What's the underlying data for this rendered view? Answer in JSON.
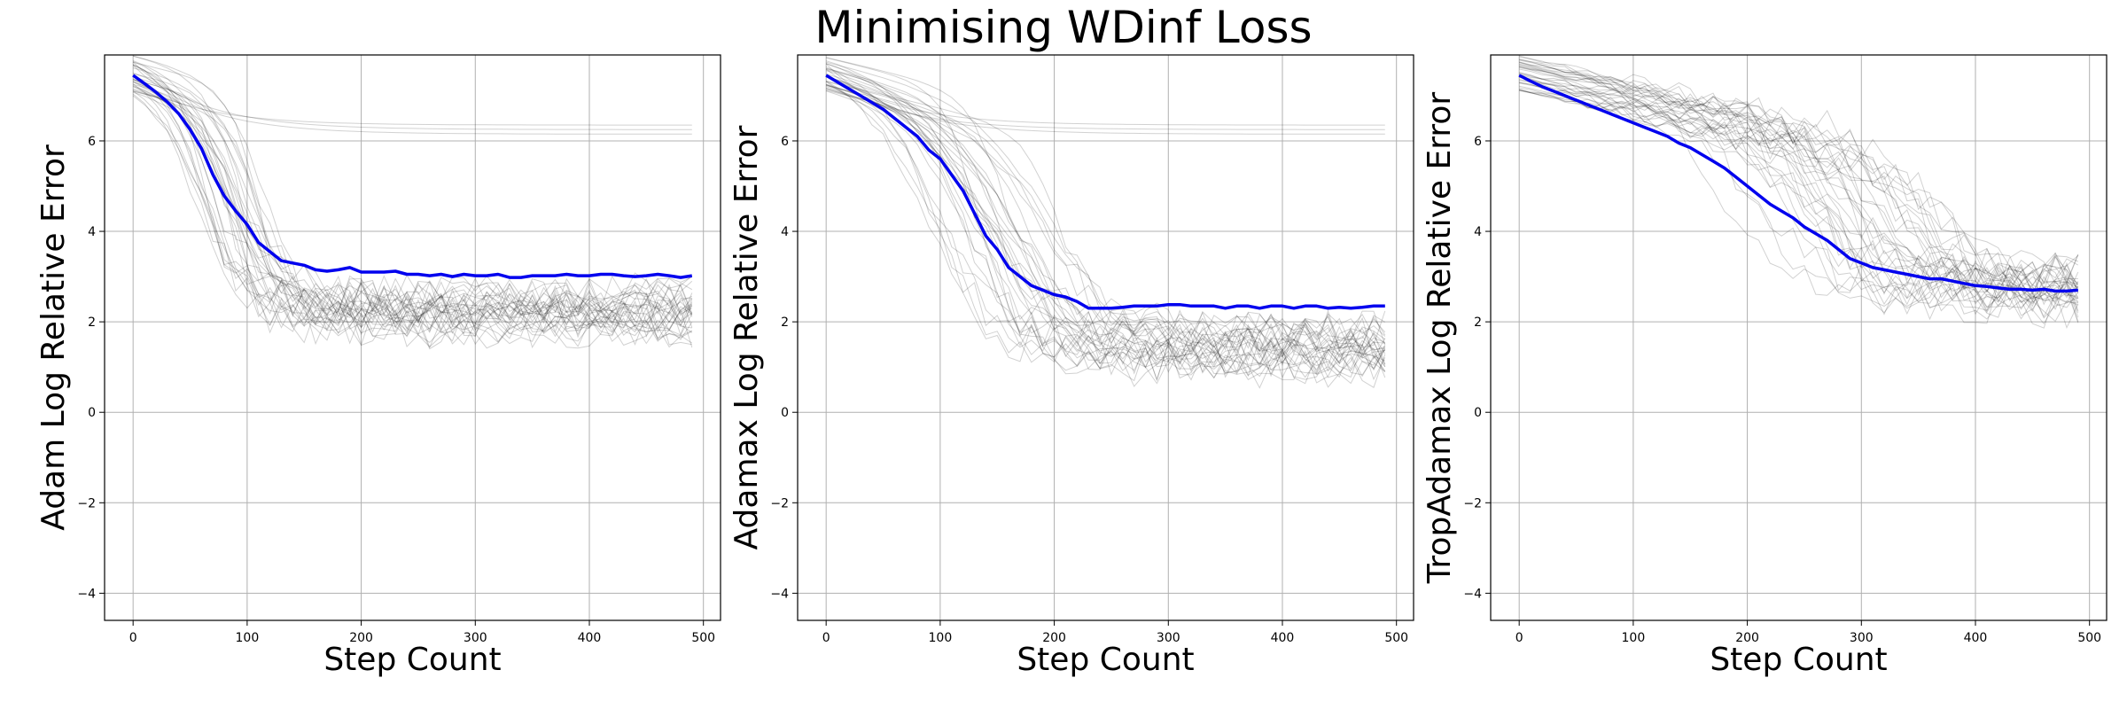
{
  "figure": {
    "suptitle": "Minimising WDinf Loss"
  },
  "chart_data": [
    {
      "type": "line",
      "title": "",
      "xlabel": "Step Count",
      "ylabel": "Adam Log Relative Error",
      "xlim": [
        -25,
        515
      ],
      "ylim": [
        -4.6,
        7.9
      ],
      "xticks": [
        0,
        100,
        200,
        300,
        400,
        500
      ],
      "yticks": [
        -4,
        -2,
        0,
        2,
        4,
        6
      ],
      "xtick_labels": [
        "0",
        "100",
        "200",
        "300",
        "400",
        "500"
      ],
      "ytick_labels": [
        "−4",
        "−2",
        "0",
        "2",
        "4",
        "6"
      ],
      "grid": true,
      "mean_color": "#0000ee",
      "run_color": "#000000",
      "x": [
        0,
        10,
        20,
        30,
        40,
        50,
        60,
        70,
        80,
        90,
        100,
        110,
        120,
        130,
        140,
        150,
        160,
        170,
        180,
        190,
        200,
        210,
        220,
        230,
        240,
        250,
        260,
        270,
        280,
        290,
        300,
        310,
        320,
        330,
        340,
        350,
        360,
        370,
        380,
        390,
        400,
        410,
        420,
        430,
        440,
        450,
        460,
        470,
        480,
        490
      ],
      "series": [
        {
          "values": [
            7.45,
            7.27,
            7.08,
            6.86,
            6.6,
            6.25,
            5.83,
            5.25,
            4.78,
            4.45,
            4.15,
            3.75,
            3.55,
            3.35,
            3.3,
            3.25,
            3.15,
            3.12,
            3.15,
            3.2,
            3.1,
            3.1,
            3.1,
            3.12,
            3.05,
            3.05,
            3.02,
            3.05,
            3.0,
            3.05,
            3.02,
            3.02,
            3.05,
            2.98,
            2.98,
            3.02,
            3.02,
            3.02,
            3.05,
            3.02,
            3.02,
            3.05,
            3.05,
            3.02,
            3.0,
            3.02,
            3.05,
            3.02,
            2.98,
            3.02
          ]
        }
      ]
    },
    {
      "type": "line",
      "title": "",
      "xlabel": "Step Count",
      "ylabel": "Adamax Log Relative Error",
      "xlim": [
        -25,
        515
      ],
      "ylim": [
        -4.6,
        7.9
      ],
      "xticks": [
        0,
        100,
        200,
        300,
        400,
        500
      ],
      "yticks": [
        -4,
        -2,
        0,
        2,
        4,
        6
      ],
      "xtick_labels": [
        "0",
        "100",
        "200",
        "300",
        "400",
        "500"
      ],
      "ytick_labels": [
        "−4",
        "−2",
        "0",
        "2",
        "4",
        "6"
      ],
      "grid": true,
      "mean_color": "#0000ee",
      "run_color": "#000000",
      "x": [
        0,
        10,
        20,
        30,
        40,
        50,
        60,
        70,
        80,
        90,
        100,
        110,
        120,
        130,
        140,
        150,
        160,
        170,
        180,
        190,
        200,
        210,
        220,
        230,
        240,
        250,
        260,
        270,
        280,
        290,
        300,
        310,
        320,
        330,
        340,
        350,
        360,
        370,
        380,
        390,
        400,
        410,
        420,
        430,
        440,
        450,
        460,
        470,
        480,
        490
      ],
      "series": [
        {
          "values": [
            7.45,
            7.3,
            7.15,
            7.0,
            6.85,
            6.7,
            6.5,
            6.3,
            6.1,
            5.8,
            5.6,
            5.25,
            4.9,
            4.4,
            3.9,
            3.6,
            3.2,
            3.0,
            2.8,
            2.7,
            2.6,
            2.55,
            2.45,
            2.3,
            2.3,
            2.3,
            2.32,
            2.35,
            2.35,
            2.35,
            2.38,
            2.38,
            2.35,
            2.35,
            2.35,
            2.3,
            2.35,
            2.35,
            2.3,
            2.35,
            2.35,
            2.3,
            2.35,
            2.35,
            2.3,
            2.32,
            2.3,
            2.32,
            2.35,
            2.35
          ]
        }
      ]
    },
    {
      "type": "line",
      "title": "",
      "xlabel": "Step Count",
      "ylabel": "TropAdamax Log Relative Error",
      "xlim": [
        -25,
        515
      ],
      "ylim": [
        -4.6,
        7.9
      ],
      "xticks": [
        0,
        100,
        200,
        300,
        400,
        500
      ],
      "yticks": [
        -4,
        -2,
        0,
        2,
        4,
        6
      ],
      "xtick_labels": [
        "0",
        "100",
        "200",
        "300",
        "400",
        "500"
      ],
      "ytick_labels": [
        "−4",
        "−2",
        "0",
        "2",
        "4",
        "6"
      ],
      "grid": true,
      "mean_color": "#0000ee",
      "run_color": "#000000",
      "x": [
        0,
        10,
        20,
        30,
        40,
        50,
        60,
        70,
        80,
        90,
        100,
        110,
        120,
        130,
        140,
        150,
        160,
        170,
        180,
        190,
        200,
        210,
        220,
        230,
        240,
        250,
        260,
        270,
        280,
        290,
        300,
        310,
        320,
        330,
        340,
        350,
        360,
        370,
        380,
        390,
        400,
        410,
        420,
        430,
        440,
        450,
        460,
        470,
        480,
        490
      ],
      "series": [
        {
          "values": [
            7.45,
            7.32,
            7.2,
            7.1,
            7.0,
            6.9,
            6.8,
            6.7,
            6.6,
            6.5,
            6.4,
            6.3,
            6.2,
            6.1,
            5.95,
            5.85,
            5.7,
            5.55,
            5.4,
            5.2,
            5.0,
            4.8,
            4.6,
            4.45,
            4.3,
            4.1,
            3.95,
            3.8,
            3.6,
            3.4,
            3.3,
            3.2,
            3.15,
            3.1,
            3.05,
            3.0,
            2.95,
            2.95,
            2.9,
            2.85,
            2.8,
            2.78,
            2.75,
            2.72,
            2.72,
            2.7,
            2.72,
            2.68,
            2.68,
            2.7
          ]
        }
      ]
    }
  ]
}
